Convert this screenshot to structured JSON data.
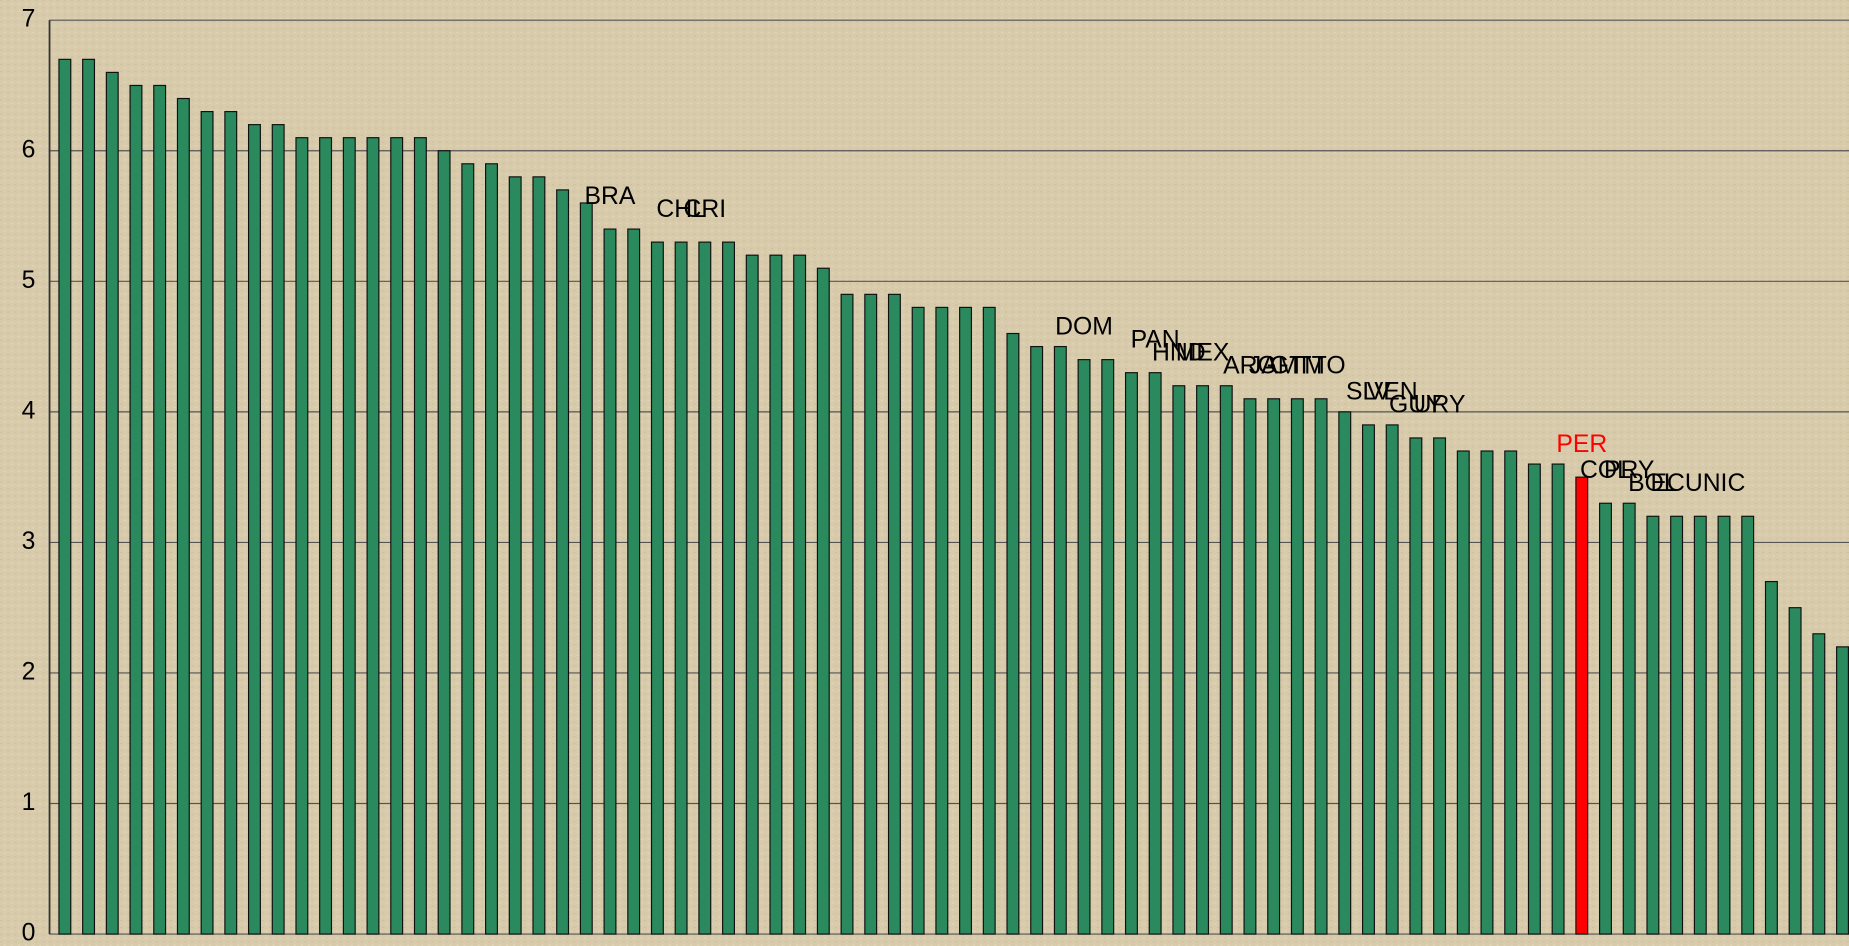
{
  "chart_data": {
    "type": "bar",
    "categories": [
      null,
      null,
      null,
      null,
      null,
      null,
      null,
      null,
      null,
      null,
      null,
      null,
      null,
      null,
      null,
      null,
      null,
      null,
      null,
      null,
      null,
      null,
      null,
      "BRA",
      null,
      null,
      "CHL",
      "CRI",
      null,
      null,
      null,
      null,
      null,
      null,
      null,
      null,
      null,
      null,
      null,
      null,
      null,
      null,
      null,
      "DOM",
      null,
      null,
      "PAN",
      "HND",
      "MEX",
      null,
      "ARG",
      "JAM",
      "GTM",
      "TTO",
      null,
      "SLV",
      "VEN",
      "GUY",
      "URY",
      null,
      null,
      null,
      null,
      null,
      "PER",
      "COL",
      "PRY",
      "BOL",
      "ECU",
      null,
      "NIC",
      null,
      null,
      null,
      null,
      null
    ],
    "values": [
      6.7,
      6.7,
      6.6,
      6.5,
      6.5,
      6.4,
      6.3,
      6.3,
      6.2,
      6.2,
      6.1,
      6.1,
      6.1,
      6.1,
      6.1,
      6.1,
      6.0,
      5.9,
      5.9,
      5.8,
      5.8,
      5.7,
      5.6,
      5.4,
      5.4,
      5.3,
      5.3,
      5.3,
      5.3,
      5.2,
      5.2,
      5.2,
      5.1,
      4.9,
      4.9,
      4.9,
      4.8,
      4.8,
      4.8,
      4.8,
      4.6,
      4.5,
      4.5,
      4.4,
      4.4,
      4.3,
      4.3,
      4.2,
      4.2,
      4.2,
      4.1,
      4.1,
      4.1,
      4.1,
      4.0,
      3.9,
      3.9,
      3.8,
      3.8,
      3.7,
      3.7,
      3.7,
      3.6,
      3.6,
      3.5,
      3.3,
      3.3,
      3.2,
      3.2,
      3.2,
      3.2,
      3.2,
      2.7,
      2.5,
      2.3,
      2.2
    ],
    "color": "#2a8a5e",
    "highlight": {
      "index": 64,
      "color": "#ff0000"
    },
    "ylim": [
      0,
      7
    ],
    "yticks": [
      0,
      1,
      2,
      3,
      4,
      5,
      6,
      7
    ],
    "grid": true
  }
}
